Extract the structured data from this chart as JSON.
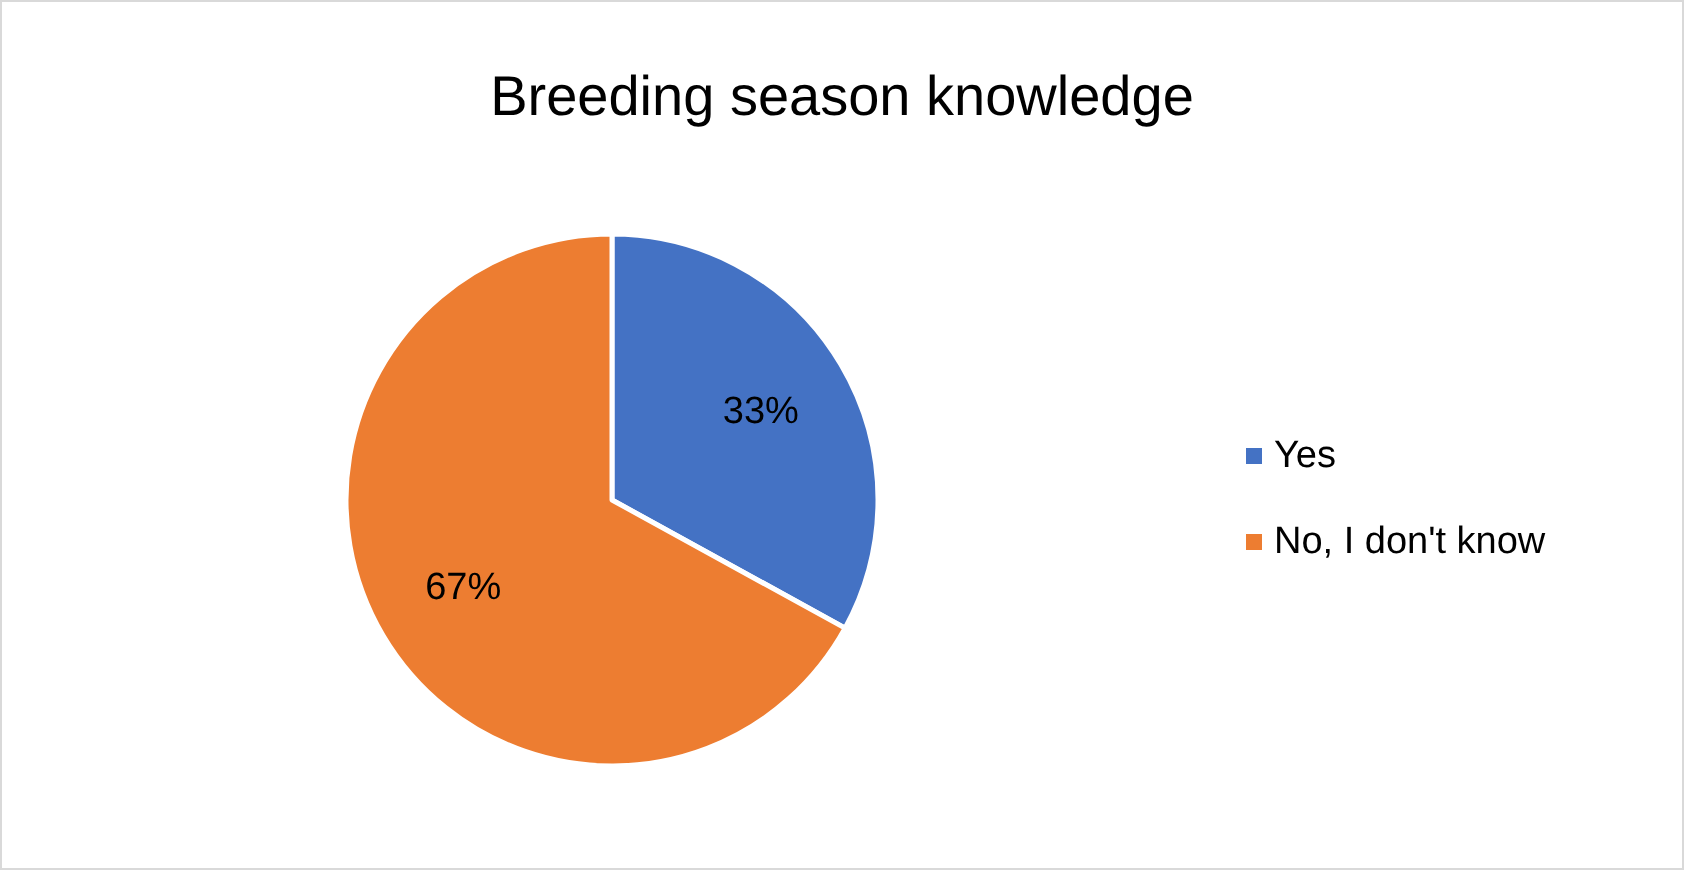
{
  "chart_data": {
    "type": "pie",
    "title": "Breeding season knowledge",
    "categories": [
      "Yes",
      "No, I don't know"
    ],
    "values": [
      33,
      67
    ],
    "colors": [
      "#4472c4",
      "#ed7d31"
    ],
    "value_labels": [
      "33%",
      "67%"
    ],
    "legend": "right"
  }
}
